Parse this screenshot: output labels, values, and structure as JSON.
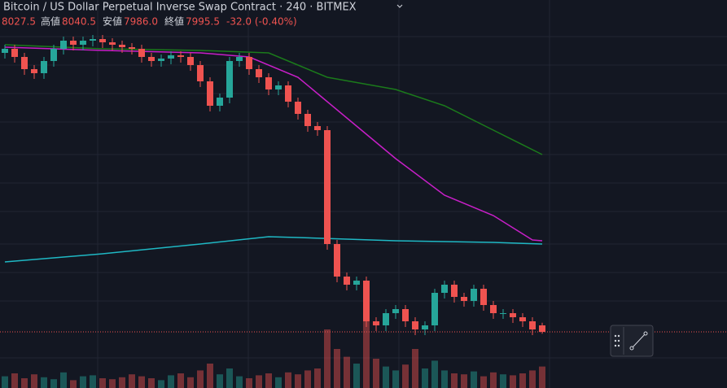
{
  "header": {
    "title": "Bitcoin / US Dollar Perpetual Inverse Swap Contract · 240 · BITMEX",
    "legend": {
      "open_value": "8027.5",
      "high_label": "高値",
      "high_value": "8040.5",
      "low_label": "安値",
      "low_value": "7986.0",
      "close_label": "終値",
      "close_value": "7995.5",
      "change": "-32.0 (-0.40%)"
    }
  },
  "chart_data": {
    "type": "candlestick",
    "ylim": [
      7719.5,
      9627.5
    ],
    "up_color": "#26a69a",
    "down_color": "#ef5350",
    "open": [
      9367.5,
      9387.5,
      9347.5,
      9287.5,
      9267.5,
      9327.5,
      9387.5,
      9427.5,
      9407.5,
      9427.5,
      9435.5,
      9419.5,
      9407.5,
      9395.5,
      9387.5,
      9347.5,
      9327.5,
      9339.5,
      9355.5,
      9347.5,
      9307.5,
      9227.5,
      9107.5,
      9147.5,
      9327.5,
      9347.5,
      9287.5,
      9247.5,
      9187.5,
      9207.5,
      9127.5,
      9067.5,
      9007.5,
      8987.5,
      8427.5,
      8267.5,
      8227.5,
      8247.5,
      8047.5,
      8027.5,
      8087.5,
      8107.5,
      8047.5,
      8007.5,
      8027.5,
      8187.5,
      8227.5,
      8167.5,
      8147.5,
      8207.5,
      8127.5,
      8087.5,
      8087.5,
      8067.5,
      8047.5,
      8027.5
    ],
    "high": [
      9407.5,
      9407.5,
      9367.5,
      9307.5,
      9347.5,
      9407.5,
      9447.5,
      9447.5,
      9447.5,
      9455.5,
      9455.5,
      9439.5,
      9427.5,
      9415.5,
      9407.5,
      9367.5,
      9359.5,
      9375.5,
      9375.5,
      9367.5,
      9327.5,
      9247.5,
      9167.5,
      9347.5,
      9367.5,
      9367.5,
      9307.5,
      9267.5,
      9227.5,
      9227.5,
      9147.5,
      9087.5,
      9027.5,
      9007.5,
      8447.5,
      8287.5,
      8267.5,
      8267.5,
      8067.5,
      8107.5,
      8127.5,
      8127.5,
      8067.5,
      8047.5,
      8207.5,
      8247.5,
      8247.5,
      8187.5,
      8227.5,
      8227.5,
      8147.5,
      8107.5,
      8107.5,
      8087.5,
      8067.5,
      8040.5
    ],
    "low": [
      9339.5,
      9319.5,
      9259.5,
      9239.5,
      9239.5,
      9299.5,
      9359.5,
      9379.5,
      9379.5,
      9399.5,
      9391.5,
      9379.5,
      9367.5,
      9359.5,
      9319.5,
      9299.5,
      9299.5,
      9311.5,
      9319.5,
      9279.5,
      9199.5,
      9079.5,
      9079.5,
      9119.5,
      9299.5,
      9259.5,
      9219.5,
      9159.5,
      9159.5,
      9099.5,
      9039.5,
      8979.5,
      8959.5,
      8399.5,
      8239.5,
      8199.5,
      8199.5,
      8019.5,
      7999.5,
      7999.5,
      8059.5,
      8019.5,
      7979.5,
      7979.5,
      7999.5,
      8159.5,
      8139.5,
      8119.5,
      8119.5,
      8099.5,
      8059.5,
      8059.5,
      8039.5,
      8019.5,
      7979.5,
      7986
    ],
    "close": [
      9387.5,
      9347.5,
      9287.5,
      9267.5,
      9327.5,
      9387.5,
      9427.5,
      9407.5,
      9427.5,
      9435.5,
      9419.5,
      9407.5,
      9395.5,
      9387.5,
      9347.5,
      9327.5,
      9339.5,
      9355.5,
      9347.5,
      9307.5,
      9227.5,
      9107.5,
      9147.5,
      9327.5,
      9347.5,
      9287.5,
      9247.5,
      9187.5,
      9207.5,
      9127.5,
      9067.5,
      9007.5,
      8987.5,
      8427.5,
      8267.5,
      8227.5,
      8247.5,
      8047.5,
      8027.5,
      8087.5,
      8107.5,
      8047.5,
      8007.5,
      8027.5,
      8187.5,
      8227.5,
      8167.5,
      8147.5,
      8207.5,
      8127.5,
      8087.5,
      8087.5,
      8067.5,
      8047.5,
      8007.5,
      7995.5
    ],
    "volume": [
      12,
      15,
      10,
      14,
      11,
      9,
      16,
      8,
      12,
      13,
      10,
      9,
      11,
      14,
      12,
      10,
      8,
      13,
      15,
      11,
      18,
      25,
      14,
      20,
      12,
      10,
      13,
      15,
      11,
      16,
      14,
      18,
      20,
      60,
      40,
      32,
      25,
      70,
      30,
      22,
      18,
      24,
      40,
      20,
      28,
      18,
      15,
      14,
      17,
      12,
      16,
      14,
      13,
      15,
      18,
      22
    ],
    "vlim": [
      0,
      100
    ],
    "lines": [
      {
        "color": "#1b7a1b",
        "x": [
          0,
          10,
          20,
          27,
          30,
          33,
          40,
          45,
          50,
          55
        ],
        "values": [
          9407.5,
          9387.5,
          9379.5,
          9367.5,
          9307.5,
          9247.5,
          9187.5,
          9107.5,
          8987.5,
          8867.5
        ]
      },
      {
        "color": "#c71fc7",
        "x": [
          0,
          10,
          20,
          25,
          30,
          33,
          36,
          40,
          45,
          50,
          54,
          55
        ],
        "values": [
          9395.5,
          9379.5,
          9367.5,
          9347.5,
          9247.5,
          9127.5,
          9007.5,
          8847.5,
          8667.5,
          8567.5,
          8447.5,
          8443.5
        ]
      },
      {
        "color": "#1fb8c4",
        "x": [
          0,
          10,
          20,
          27,
          30,
          40,
          50,
          55
        ],
        "values": [
          8339.5,
          8379.5,
          8427.5,
          8463.5,
          8459.5,
          8443.5,
          8435.5,
          8427.5
        ]
      }
    ],
    "price_line": true
  }
}
